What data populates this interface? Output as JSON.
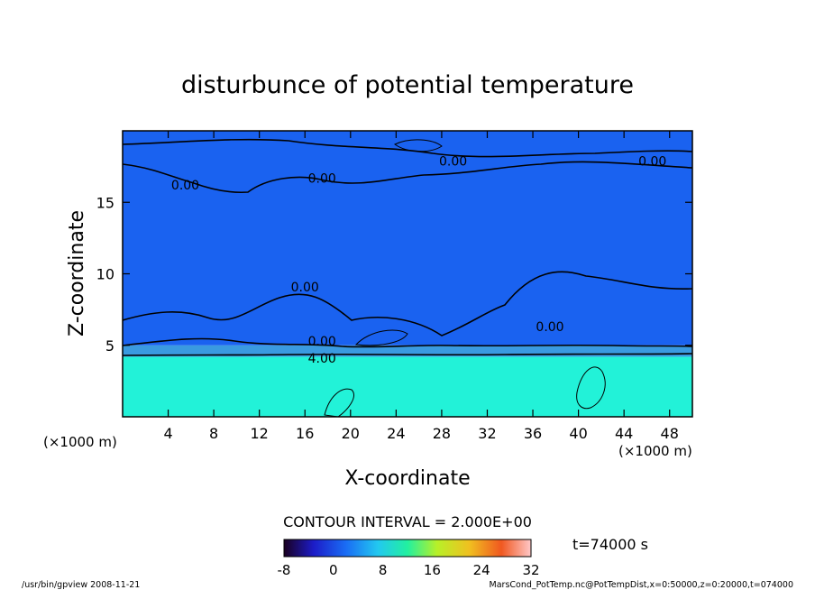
{
  "chart_data": {
    "type": "heatmap",
    "title": "disturbunce of potential temperature",
    "xlabel": "X-coordinate",
    "ylabel": "Z-coordinate",
    "x_unit": "(×1000 m)",
    "z_unit": "(×1000 m)",
    "xlim": [
      0,
      50
    ],
    "ylim": [
      0,
      20
    ],
    "x_ticks": [
      4,
      8,
      12,
      16,
      20,
      24,
      28,
      32,
      36,
      40,
      44,
      48
    ],
    "y_ticks": [
      5,
      10,
      15
    ],
    "contour_interval_label": "CONTOUR INTERVAL = 2.000E+00",
    "time_label": "t=74000 s",
    "colorbar": {
      "min": -8,
      "max": 32,
      "ticks": [
        -8,
        0,
        8,
        16,
        24,
        32
      ]
    },
    "bands": [
      {
        "z_from": 0,
        "z_to": 4.2,
        "value": 14,
        "color": "#22f2d8",
        "label": ""
      },
      {
        "z_from": 4.2,
        "z_to": 5.0,
        "value": 4,
        "color": "#3a9ae0",
        "label": "4.00"
      },
      {
        "z_from": 5.0,
        "z_to": 20,
        "value": 0,
        "color": "#1a62f0",
        "label": "0.00"
      }
    ],
    "contour_labels": [
      {
        "text": "0.00",
        "x": 29,
        "z": 17.9
      },
      {
        "text": "0.00",
        "x": 46.5,
        "z": 17.9
      },
      {
        "text": "0.00",
        "x": 17.5,
        "z": 16.7
      },
      {
        "text": "0.00",
        "x": 5.5,
        "z": 16.2
      },
      {
        "text": "0.00",
        "x": 16,
        "z": 9.1
      },
      {
        "text": "0.00",
        "x": 37.5,
        "z": 6.3
      },
      {
        "text": "0.00",
        "x": 17.5,
        "z": 5.3
      },
      {
        "text": "4.00",
        "x": 17.5,
        "z": 4.1
      }
    ],
    "footer_left": "/usr/bin/gpview   2008-11-21",
    "footer_right": "MarsCond_PotTemp.nc@PotTempDist,x=0:50000,z=0:20000,t=074000"
  }
}
